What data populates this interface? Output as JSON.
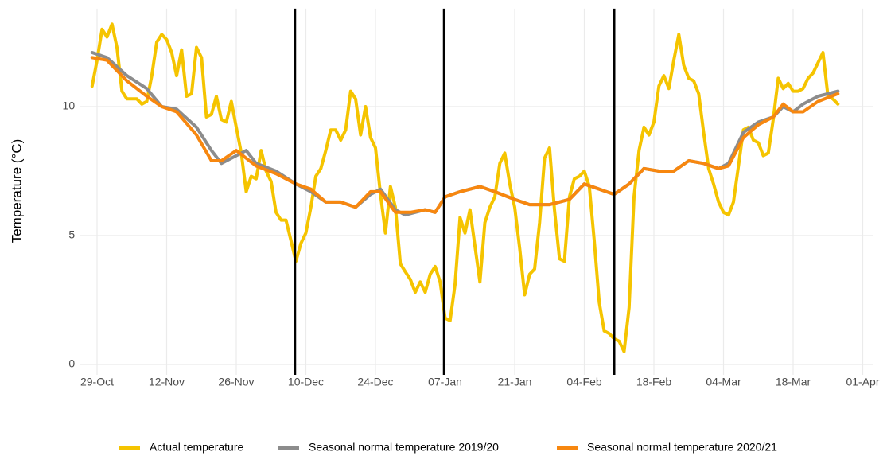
{
  "chart_data": {
    "type": "line",
    "y_label": "Temperature (°C)",
    "xlim": [
      -3.5,
      156
    ],
    "ylim": [
      -0.4,
      13.8
    ],
    "xticks": [
      {
        "value": 0,
        "label": "29-Oct"
      },
      {
        "value": 14,
        "label": "12-Nov"
      },
      {
        "value": 28,
        "label": "26-Nov"
      },
      {
        "value": 42,
        "label": "10-Dec"
      },
      {
        "value": 56,
        "label": "24-Dec"
      },
      {
        "value": 70,
        "label": "07-Jan"
      },
      {
        "value": 84,
        "label": "21-Jan"
      },
      {
        "value": 98,
        "label": "04-Feb"
      },
      {
        "value": 112,
        "label": "18-Feb"
      },
      {
        "value": 126,
        "label": "04-Mar"
      },
      {
        "value": 140,
        "label": "18-Mar"
      },
      {
        "value": 154,
        "label": "01-Apr"
      }
    ],
    "yticks": [
      0,
      5,
      10
    ],
    "grid": true,
    "vlines": [
      39.8,
      69.8,
      104
    ],
    "vline_color": "#000000",
    "series": [
      {
        "name": "Actual temperature",
        "color": "#f5c400",
        "x": [
          -1,
          0,
          1,
          2,
          3,
          4,
          5,
          6,
          7,
          8,
          9,
          10,
          11,
          12,
          13,
          14,
          15,
          16,
          17,
          18,
          19,
          20,
          21,
          22,
          23,
          24,
          25,
          26,
          27,
          28,
          29,
          30,
          31,
          32,
          33,
          34,
          35,
          36,
          37,
          38,
          39,
          40,
          41,
          42,
          43,
          44,
          45,
          46,
          47,
          48,
          49,
          50,
          51,
          52,
          53,
          54,
          55,
          56,
          57,
          58,
          59,
          60,
          61,
          62,
          63,
          64,
          65,
          66,
          67,
          68,
          69,
          70,
          71,
          72,
          73,
          74,
          75,
          76,
          77,
          78,
          79,
          80,
          81,
          82,
          83,
          84,
          85,
          86,
          87,
          88,
          89,
          90,
          91,
          92,
          93,
          94,
          95,
          96,
          97,
          98,
          99,
          100,
          101,
          102,
          103,
          104,
          105,
          106,
          107,
          108,
          109,
          110,
          111,
          112,
          113,
          114,
          115,
          116,
          117,
          118,
          119,
          120,
          121,
          122,
          123,
          124,
          125,
          126,
          127,
          128,
          129,
          130,
          131,
          132,
          133,
          134,
          135,
          136,
          137,
          138,
          139,
          140,
          141,
          142,
          143,
          144,
          145,
          146,
          147,
          148,
          149
        ],
        "values": [
          10.8,
          11.8,
          13.0,
          12.7,
          13.2,
          12.3,
          10.6,
          10.3,
          10.3,
          10.3,
          10.1,
          10.2,
          11.2,
          12.5,
          12.8,
          12.6,
          12.1,
          11.2,
          12.2,
          10.4,
          10.5,
          12.3,
          11.9,
          9.6,
          9.7,
          10.4,
          9.5,
          9.4,
          10.2,
          9.2,
          8.2,
          6.7,
          7.3,
          7.2,
          8.3,
          7.5,
          7.1,
          5.9,
          5.6,
          5.6,
          4.8,
          4.0,
          4.7,
          5.1,
          6.1,
          7.3,
          7.6,
          8.3,
          9.1,
          9.1,
          8.7,
          9.1,
          10.6,
          10.3,
          8.9,
          10.0,
          8.8,
          8.4,
          6.6,
          5.1,
          6.9,
          6.1,
          3.9,
          3.6,
          3.3,
          2.8,
          3.2,
          2.8,
          3.5,
          3.8,
          3.2,
          1.8,
          1.7,
          3.1,
          5.7,
          5.1,
          6.0,
          4.6,
          3.2,
          5.5,
          6.1,
          6.5,
          7.8,
          8.2,
          7.0,
          6.1,
          4.5,
          2.7,
          3.5,
          3.7,
          5.5,
          8.0,
          8.4,
          6.0,
          4.1,
          4.0,
          6.5,
          7.2,
          7.3,
          7.5,
          6.9,
          4.8,
          2.4,
          1.3,
          1.2,
          1.0,
          0.9,
          0.5,
          2.2,
          6.5,
          8.3,
          9.2,
          8.9,
          9.4,
          10.8,
          11.2,
          10.7,
          11.8,
          12.8,
          11.6,
          11.1,
          11.0,
          10.5,
          9.0,
          7.6,
          7.0,
          6.3,
          5.9,
          5.8,
          6.3,
          7.7,
          9.1,
          9.2,
          8.7,
          8.6,
          8.1,
          8.2,
          9.5,
          11.1,
          10.7,
          10.9,
          10.6,
          10.6,
          10.7,
          11.1,
          11.3,
          11.7,
          12.1,
          10.4,
          10.3,
          10.1
        ]
      },
      {
        "name": "Seasonal normal temperature 2019/20",
        "color": "#8c8c8c",
        "x": [
          -1,
          2,
          6,
          10,
          13,
          16,
          20,
          23,
          25,
          28,
          30,
          32,
          36,
          40,
          43,
          46,
          49,
          52,
          55,
          57,
          60,
          62,
          66,
          68,
          70,
          73,
          77,
          80,
          84,
          87,
          91,
          95,
          98,
          101,
          104,
          107,
          110,
          113,
          116,
          119,
          122,
          125,
          127,
          130,
          133,
          136,
          138,
          140,
          142,
          145,
          149
        ],
        "values": [
          12.1,
          11.9,
          11.2,
          10.7,
          10.0,
          9.9,
          9.2,
          8.3,
          7.8,
          8.1,
          8.3,
          7.8,
          7.5,
          7.0,
          6.7,
          6.3,
          6.3,
          6.1,
          6.6,
          6.8,
          6.0,
          5.8,
          6.0,
          5.9,
          6.5,
          6.7,
          6.9,
          6.7,
          6.4,
          6.2,
          6.2,
          6.4,
          7.0,
          6.8,
          6.6,
          7.0,
          7.6,
          7.5,
          7.5,
          7.9,
          7.8,
          7.6,
          7.8,
          9.0,
          9.4,
          9.6,
          10.0,
          9.8,
          10.1,
          10.4,
          10.6
        ]
      },
      {
        "name": "Seasonal normal temperature 2020/21",
        "color": "#f7870f",
        "x": [
          -1,
          2,
          6,
          10,
          13,
          16,
          20,
          23,
          25,
          28,
          30,
          32,
          36,
          40,
          43,
          46,
          49,
          52,
          55,
          57,
          60,
          63,
          66,
          68,
          70,
          73,
          77,
          80,
          84,
          87,
          91,
          95,
          98,
          101,
          104,
          107,
          110,
          113,
          116,
          119,
          122,
          125,
          127,
          130,
          133,
          136,
          138,
          140,
          142,
          145,
          149
        ],
        "values": [
          11.9,
          11.8,
          11.0,
          10.4,
          10.0,
          9.8,
          8.9,
          7.9,
          7.9,
          8.3,
          8.0,
          7.7,
          7.4,
          7.0,
          6.8,
          6.3,
          6.3,
          6.1,
          6.7,
          6.7,
          5.9,
          5.9,
          6.0,
          5.9,
          6.5,
          6.7,
          6.9,
          6.7,
          6.4,
          6.2,
          6.2,
          6.4,
          7.0,
          6.8,
          6.6,
          7.0,
          7.6,
          7.5,
          7.5,
          7.9,
          7.8,
          7.6,
          7.7,
          8.8,
          9.3,
          9.6,
          10.1,
          9.8,
          9.8,
          10.2,
          10.5
        ]
      }
    ]
  }
}
